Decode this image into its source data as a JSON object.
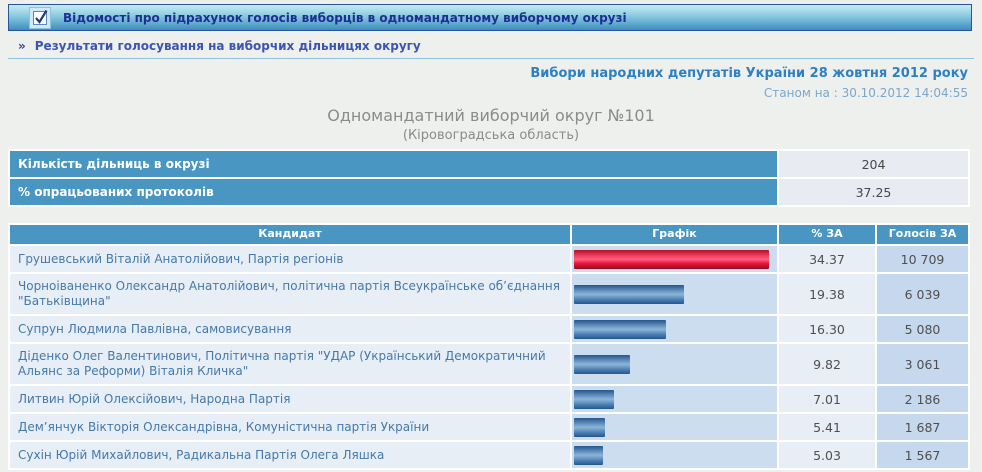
{
  "colors": {
    "accent_steel_blue": "#4a96c3",
    "bar_red": "#e2143a",
    "bar_blue": "#4d83b6",
    "link_blue": "#3d55b2",
    "topbar_text_navy": "#1d2f91",
    "election_title_blue": "#2e80c2"
  },
  "top_bar": {
    "title": "Відомості про підрахунок голосів виборців в одномандатному виборчому окрузі",
    "icon": "checkbox-checked-icon"
  },
  "breadcrumb": {
    "marker": "»",
    "label": "Результати голосування на виборчих дільницях округу"
  },
  "election_header": {
    "title": "Вибори народних депутатів України 28 жовтня 2012 року",
    "as_of": "Станом на : 30.10.2012 14:04:55"
  },
  "district": {
    "title": "Одномандатний виборчий округ №101",
    "region": "(Кіровоградська область)"
  },
  "summary": {
    "rows": [
      {
        "label": "Кількість дільниць в окрузі",
        "value": "204"
      },
      {
        "label": "% опрацьованих протоколів",
        "value": "37.25"
      }
    ]
  },
  "results": {
    "headers": {
      "candidate": "Кандидат",
      "graph": "Графік",
      "percent": "% ЗА",
      "votes": "Голосів ЗА"
    },
    "rows": [
      {
        "candidate": "Грушевський Віталій Анатолійович, Партія регіонів",
        "percent": "34.37",
        "votes": "10 709",
        "bar_color": "red"
      },
      {
        "candidate": "Чорноіваненко Олександр Анатолійович, політична партія Всеукраїнське об’єднання \"Батьківщина\"",
        "percent": "19.38",
        "votes": "6 039",
        "bar_color": "blue"
      },
      {
        "candidate": "Супрун Людмила Павлівна, самовисування",
        "percent": "16.30",
        "votes": "5 080",
        "bar_color": "blue"
      },
      {
        "candidate": "Діденко Олег Валентинович, Політична партія \"УДАР (Український Демократичний Альянс за Реформи) Віталія Кличка\"",
        "percent": "9.82",
        "votes": "3 061",
        "bar_color": "blue"
      },
      {
        "candidate": "Литвин Юрій Олексійович, Народна Партія",
        "percent": "7.01",
        "votes": "2 186",
        "bar_color": "blue"
      },
      {
        "candidate": "Дем’янчук Вікторія Олександрівна, Комуністична партія України",
        "percent": "5.41",
        "votes": "1 687",
        "bar_color": "blue"
      },
      {
        "candidate": "Сухін Юрій Михайлович, Радикальна Партія Олега Ляшка",
        "percent": "5.03",
        "votes": "1 567",
        "bar_color": "blue"
      }
    ]
  }
}
